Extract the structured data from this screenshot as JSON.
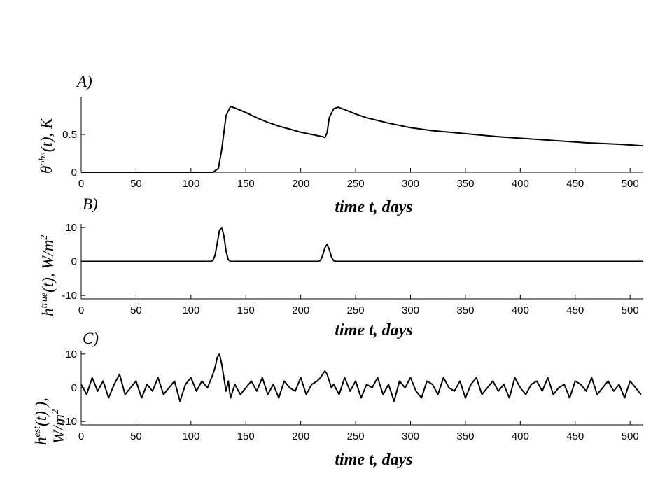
{
  "chart_data": [
    {
      "type": "line",
      "panel_label": "A)",
      "xlabel": "time  t, days",
      "ylabel": {
        "base": "θ",
        "sup": "obs",
        "rest": "(t), K"
      },
      "xlim": [
        0,
        512
      ],
      "ylim": [
        0,
        1.0
      ],
      "xticks": [
        0,
        50,
        100,
        150,
        200,
        250,
        300,
        350,
        400,
        450,
        500
      ],
      "yticks": [
        0,
        0.5
      ],
      "ytick_labels": [
        "0",
        "0.5"
      ],
      "grid": false,
      "series": [
        {
          "x": [
            0,
            50,
            100,
            120,
            125,
            128,
            132,
            136,
            140,
            150,
            160,
            170,
            180,
            190,
            200,
            210,
            220,
            222,
            224,
            226,
            230,
            234,
            240,
            250,
            260,
            280,
            300,
            320,
            350,
            380,
            400,
            430,
            460,
            490,
            512
          ],
          "y": [
            0.0,
            0.0,
            0.0,
            0.0,
            0.05,
            0.3,
            0.75,
            0.87,
            0.85,
            0.79,
            0.72,
            0.66,
            0.61,
            0.57,
            0.53,
            0.5,
            0.47,
            0.46,
            0.52,
            0.72,
            0.84,
            0.86,
            0.83,
            0.77,
            0.72,
            0.65,
            0.59,
            0.55,
            0.51,
            0.47,
            0.45,
            0.42,
            0.39,
            0.37,
            0.35
          ]
        }
      ]
    },
    {
      "type": "line",
      "panel_label": "B)",
      "xlabel": "time  t, days",
      "ylabel": {
        "base": "h",
        "sup": "true",
        "rest": "(t),  W/m",
        "unit_sup": "2"
      },
      "xlim": [
        0,
        512
      ],
      "ylim": [
        -11,
        11
      ],
      "xticks": [
        0,
        50,
        100,
        150,
        200,
        250,
        300,
        350,
        400,
        450,
        500
      ],
      "yticks": [
        -10,
        0,
        10
      ],
      "ytick_labels": [
        "-10",
        "0",
        "10"
      ],
      "grid": false,
      "series": [
        {
          "x": [
            0,
            100,
            118,
            120,
            122,
            124,
            126,
            128,
            130,
            132,
            134,
            136,
            200,
            216,
            218,
            220,
            222,
            224,
            226,
            228,
            230,
            232,
            512
          ],
          "y": [
            0,
            0,
            0,
            0.3,
            1.8,
            5.5,
            9.2,
            10.0,
            7.5,
            3.0,
            0.5,
            0,
            0,
            0,
            0.3,
            1.8,
            4.0,
            5.0,
            3.5,
            1.3,
            0.2,
            0,
            0
          ]
        }
      ]
    },
    {
      "type": "line",
      "panel_label": "C)",
      "xlabel": "time  t, days",
      "ylabel": {
        "line1": "h",
        "line1_sup": "est",
        "line1_rest": "(t) ),",
        "line2": "W/m",
        "line2_sup": "2"
      },
      "xlim": [
        0,
        512
      ],
      "ylim": [
        -11,
        11
      ],
      "xticks": [
        0,
        50,
        100,
        150,
        200,
        250,
        300,
        350,
        400,
        450,
        500
      ],
      "yticks": [
        -10,
        0,
        10
      ],
      "ytick_labels": [
        "-10",
        "0",
        "10"
      ],
      "grid": false,
      "series": [
        {
          "x": [
            0,
            5,
            10,
            15,
            20,
            25,
            30,
            35,
            40,
            45,
            50,
            55,
            60,
            65,
            70,
            75,
            80,
            85,
            90,
            95,
            100,
            105,
            110,
            115,
            120,
            122,
            124,
            126,
            128,
            130,
            132,
            134,
            136,
            140,
            145,
            150,
            155,
            160,
            165,
            170,
            175,
            180,
            185,
            190,
            195,
            200,
            205,
            210,
            215,
            218,
            220,
            222,
            224,
            226,
            228,
            230,
            235,
            240,
            245,
            250,
            255,
            260,
            265,
            270,
            275,
            280,
            285,
            290,
            295,
            300,
            305,
            310,
            315,
            320,
            325,
            330,
            335,
            340,
            345,
            350,
            355,
            360,
            365,
            370,
            375,
            380,
            385,
            390,
            395,
            400,
            405,
            410,
            415,
            420,
            425,
            430,
            435,
            440,
            445,
            450,
            455,
            460,
            465,
            470,
            475,
            480,
            485,
            490,
            495,
            500,
            505,
            510
          ],
          "y": [
            1,
            -2,
            3,
            -1,
            2,
            -3,
            1,
            4,
            -2,
            0,
            2,
            -3,
            1,
            -1,
            3,
            -2,
            0,
            2,
            -4,
            1,
            3,
            -1,
            2,
            0,
            4,
            6,
            9,
            10,
            7,
            3,
            -1,
            2,
            -3,
            1,
            -2,
            0,
            2,
            -1,
            3,
            -2,
            1,
            -3,
            2,
            0,
            -1,
            3,
            -2,
            1,
            2,
            3,
            4,
            5,
            4,
            2,
            0,
            1,
            -2,
            3,
            -1,
            2,
            -3,
            1,
            0,
            3,
            -2,
            1,
            -4,
            2,
            0,
            3,
            -1,
            -3,
            2,
            1,
            -2,
            3,
            0,
            -1,
            2,
            -3,
            1,
            3,
            -2,
            0,
            2,
            -1,
            1,
            -3,
            3,
            0,
            -2,
            1,
            2,
            -1,
            3,
            -2,
            0,
            1,
            -3,
            2,
            1,
            -1,
            3,
            -2,
            0,
            2,
            -1,
            1,
            -3,
            2,
            0,
            -2
          ]
        }
      ]
    }
  ]
}
